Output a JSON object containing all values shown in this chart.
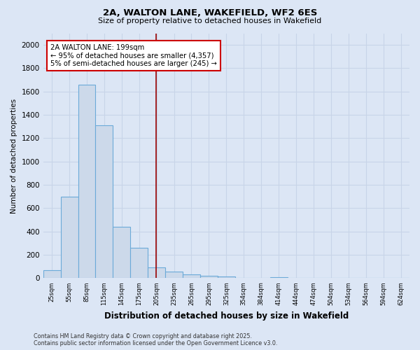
{
  "title1": "2A, WALTON LANE, WAKEFIELD, WF2 6ES",
  "title2": "Size of property relative to detached houses in Wakefield",
  "xlabel": "Distribution of detached houses by size in Wakefield",
  "ylabel": "Number of detached properties",
  "bins": [
    "25sqm",
    "55sqm",
    "85sqm",
    "115sqm",
    "145sqm",
    "175sqm",
    "205sqm",
    "235sqm",
    "265sqm",
    "295sqm",
    "325sqm",
    "354sqm",
    "384sqm",
    "414sqm",
    "444sqm",
    "474sqm",
    "504sqm",
    "534sqm",
    "564sqm",
    "594sqm",
    "624sqm"
  ],
  "values": [
    70,
    700,
    1660,
    1310,
    440,
    260,
    90,
    55,
    30,
    20,
    15,
    0,
    0,
    10,
    0,
    0,
    0,
    0,
    0,
    0,
    0
  ],
  "bar_color": "#ccd9ea",
  "bar_edge_color": "#6baad8",
  "vline_color": "#990000",
  "vline_x_idx": 5.97,
  "annotation_text": "2A WALTON LANE: 199sqm\n← 95% of detached houses are smaller (4,357)\n5% of semi-detached houses are larger (245) →",
  "annotation_box_color": "#ffffff",
  "annotation_box_edge": "#cc0000",
  "ylim": [
    0,
    2100
  ],
  "yticks": [
    0,
    200,
    400,
    600,
    800,
    1000,
    1200,
    1400,
    1600,
    1800,
    2000
  ],
  "grid_color": "#c8d4e8",
  "bg_color": "#dce6f5",
  "footnote1": "Contains HM Land Registry data © Crown copyright and database right 2025.",
  "footnote2": "Contains public sector information licensed under the Open Government Licence v3.0."
}
